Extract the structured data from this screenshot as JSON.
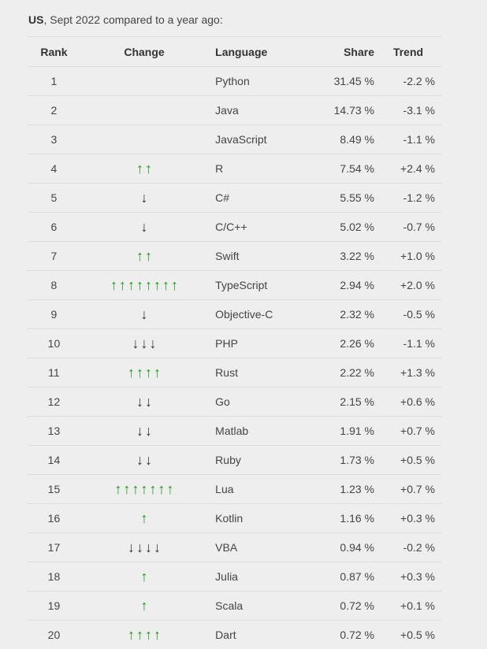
{
  "caption": {
    "country": "US",
    "text": ", Sept 2022 compared to a year ago:"
  },
  "table": {
    "headers": {
      "rank": "Rank",
      "change": "Change",
      "language": "Language",
      "share": "Share",
      "trend": "Trend"
    },
    "rows": [
      {
        "rank": "1",
        "change_dir": "none",
        "change_count": 0,
        "language": "Python",
        "share": "31.45 %",
        "trend": "-2.2 %"
      },
      {
        "rank": "2",
        "change_dir": "none",
        "change_count": 0,
        "language": "Java",
        "share": "14.73 %",
        "trend": "-3.1 %"
      },
      {
        "rank": "3",
        "change_dir": "none",
        "change_count": 0,
        "language": "JavaScript",
        "share": "8.49 %",
        "trend": "-1.1 %"
      },
      {
        "rank": "4",
        "change_dir": "up",
        "change_count": 2,
        "language": "R",
        "share": "7.54 %",
        "trend": "+2.4 %"
      },
      {
        "rank": "5",
        "change_dir": "down",
        "change_count": 1,
        "language": "C#",
        "share": "5.55 %",
        "trend": "-1.2 %"
      },
      {
        "rank": "6",
        "change_dir": "down",
        "change_count": 1,
        "language": "C/C++",
        "share": "5.02 %",
        "trend": "-0.7 %"
      },
      {
        "rank": "7",
        "change_dir": "up",
        "change_count": 2,
        "language": "Swift",
        "share": "3.22 %",
        "trend": "+1.0 %"
      },
      {
        "rank": "8",
        "change_dir": "up",
        "change_count": 8,
        "language": "TypeScript",
        "share": "2.94 %",
        "trend": "+2.0 %"
      },
      {
        "rank": "9",
        "change_dir": "down",
        "change_count": 1,
        "language": "Objective-C",
        "share": "2.32 %",
        "trend": "-0.5 %"
      },
      {
        "rank": "10",
        "change_dir": "down",
        "change_count": 3,
        "language": "PHP",
        "share": "2.26 %",
        "trend": "-1.1 %"
      },
      {
        "rank": "11",
        "change_dir": "up",
        "change_count": 4,
        "language": "Rust",
        "share": "2.22 %",
        "trend": "+1.3 %"
      },
      {
        "rank": "12",
        "change_dir": "down",
        "change_count": 2,
        "language": "Go",
        "share": "2.15 %",
        "trend": "+0.6 %"
      },
      {
        "rank": "13",
        "change_dir": "down",
        "change_count": 2,
        "language": "Matlab",
        "share": "1.91 %",
        "trend": "+0.7 %"
      },
      {
        "rank": "14",
        "change_dir": "down",
        "change_count": 2,
        "language": "Ruby",
        "share": "1.73 %",
        "trend": "+0.5 %"
      },
      {
        "rank": "15",
        "change_dir": "up",
        "change_count": 7,
        "language": "Lua",
        "share": "1.23 %",
        "trend": "+0.7 %"
      },
      {
        "rank": "16",
        "change_dir": "up",
        "change_count": 1,
        "language": "Kotlin",
        "share": "1.16 %",
        "trend": "+0.3 %"
      },
      {
        "rank": "17",
        "change_dir": "down",
        "change_count": 4,
        "language": "VBA",
        "share": "0.94 %",
        "trend": "-0.2 %"
      },
      {
        "rank": "18",
        "change_dir": "up",
        "change_count": 1,
        "language": "Julia",
        "share": "0.87 %",
        "trend": "+0.3 %"
      },
      {
        "rank": "19",
        "change_dir": "up",
        "change_count": 1,
        "language": "Scala",
        "share": "0.72 %",
        "trend": "+0.1 %"
      },
      {
        "rank": "20",
        "change_dir": "up",
        "change_count": 4,
        "language": "Dart",
        "share": "0.72 %",
        "trend": "+0.5 %"
      }
    ]
  },
  "icons": {
    "up": "arrow-up-icon",
    "down": "arrow-down-icon"
  },
  "colors": {
    "up_arrow": "#1a9a1a",
    "down_arrow": "#333333",
    "background": "#eeeeee",
    "row_border": "#dcdcdc"
  }
}
